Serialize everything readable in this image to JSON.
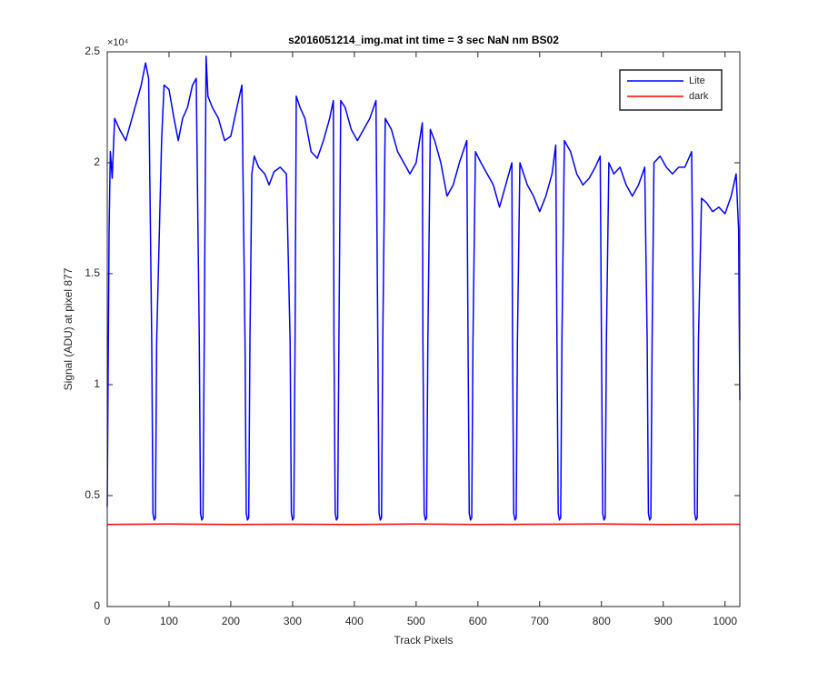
{
  "chart_data": {
    "type": "line",
    "title": "s2016051214_img.mat int time = 3 sec  NaN nm BS02",
    "x_label": "Track Pixels",
    "y_label": "Signal (ADU) at pixel 877",
    "y_exponent_label": "×10⁴",
    "xlim": [
      0,
      1024
    ],
    "ylim": [
      0,
      25000
    ],
    "xticks": [
      0,
      100,
      200,
      300,
      400,
      500,
      600,
      700,
      800,
      900,
      1000
    ],
    "yticks": [
      0,
      {
        "value": 5000,
        "label": "0.5"
      },
      {
        "value": 10000,
        "label": "1"
      },
      {
        "value": 15000,
        "label": "1.5"
      },
      {
        "value": 20000,
        "label": "2"
      },
      {
        "value": 25000,
        "label": "2.5"
      }
    ],
    "grid": false,
    "legend": "northeast",
    "series": [
      {
        "name": "Lite",
        "color": "#0000ff",
        "x": [
          0,
          3,
          5,
          8,
          12,
          20,
          30,
          45,
          55,
          62,
          67,
          72,
          74,
          76,
          78,
          80,
          88,
          92,
          100,
          108,
          115,
          122,
          130,
          138,
          144,
          149,
          151,
          153,
          155,
          157,
          160,
          163,
          170,
          180,
          190,
          200,
          210,
          218,
          223,
          225,
          227,
          229,
          231,
          234,
          238,
          245,
          255,
          262,
          270,
          280,
          290,
          296,
          298,
          300,
          302,
          304,
          306,
          312,
          320,
          330,
          340,
          350,
          360,
          366,
          367,
          369,
          371,
          373,
          375,
          378,
          385,
          395,
          405,
          415,
          425,
          435,
          438,
          440,
          442,
          444,
          446,
          450,
          460,
          470,
          480,
          490,
          500,
          510,
          511,
          513,
          515,
          517,
          519,
          523,
          530,
          540,
          550,
          560,
          570,
          582,
          584,
          586,
          588,
          590,
          592,
          596,
          605,
          615,
          625,
          635,
          645,
          655,
          656,
          658,
          660,
          662,
          664,
          668,
          680,
          690,
          700,
          710,
          720,
          726,
          728,
          730,
          732,
          734,
          736,
          740,
          750,
          760,
          770,
          780,
          790,
          798,
          800,
          802,
          804,
          806,
          808,
          812,
          820,
          830,
          840,
          850,
          860,
          870,
          874,
          876,
          878,
          880,
          882,
          885,
          895,
          905,
          915,
          925,
          935,
          946,
          949,
          951,
          953,
          955,
          957,
          962,
          970,
          980,
          990,
          1000,
          1010,
          1018,
          1022,
          1024
        ],
        "values": [
          4500,
          17000,
          20500,
          19300,
          22000,
          21500,
          21000,
          22500,
          23500,
          24500,
          23800,
          12000,
          4200,
          3900,
          4000,
          12000,
          21000,
          23500,
          23300,
          22000,
          21000,
          22000,
          22500,
          23500,
          23800,
          12000,
          4200,
          3900,
          4000,
          12000,
          24800,
          23000,
          22500,
          22000,
          21000,
          21200,
          22500,
          23500,
          12000,
          4200,
          3900,
          4000,
          12000,
          19500,
          20300,
          19800,
          19500,
          19000,
          19600,
          19800,
          19500,
          12000,
          4200,
          3900,
          4000,
          12000,
          23000,
          22500,
          22000,
          20500,
          20200,
          21000,
          22000,
          22800,
          12000,
          4200,
          3900,
          4000,
          12000,
          22800,
          22500,
          21500,
          21000,
          21500,
          22000,
          22800,
          12000,
          4200,
          3900,
          4000,
          12000,
          22000,
          21500,
          20500,
          20000,
          19500,
          20000,
          21800,
          12000,
          4200,
          3900,
          4000,
          12000,
          21500,
          21000,
          20000,
          18500,
          19000,
          20000,
          21000,
          12000,
          4200,
          3900,
          4000,
          12000,
          20500,
          20000,
          19500,
          19000,
          18000,
          19000,
          20000,
          12000,
          4200,
          3900,
          4000,
          12000,
          20000,
          19000,
          18500,
          17800,
          18500,
          19500,
          20800,
          12000,
          4200,
          3900,
          4000,
          12000,
          21000,
          20500,
          19500,
          19000,
          19300,
          19800,
          20300,
          12000,
          4200,
          3900,
          4000,
          12000,
          20000,
          19500,
          19800,
          19000,
          18500,
          19000,
          19800,
          12000,
          4200,
          3900,
          4000,
          12000,
          20000,
          20300,
          19800,
          19500,
          19800,
          19800,
          20500,
          12000,
          4200,
          3900,
          4000,
          12000,
          18400,
          18200,
          17800,
          18000,
          17700,
          18500,
          19500,
          17000,
          9300
        ]
      },
      {
        "name": "dark",
        "color": "#ff0000",
        "x": [
          0,
          100,
          200,
          300,
          400,
          500,
          600,
          700,
          800,
          900,
          1024
        ],
        "values": [
          3700,
          3720,
          3700,
          3710,
          3700,
          3720,
          3700,
          3710,
          3720,
          3700,
          3710
        ]
      }
    ]
  }
}
